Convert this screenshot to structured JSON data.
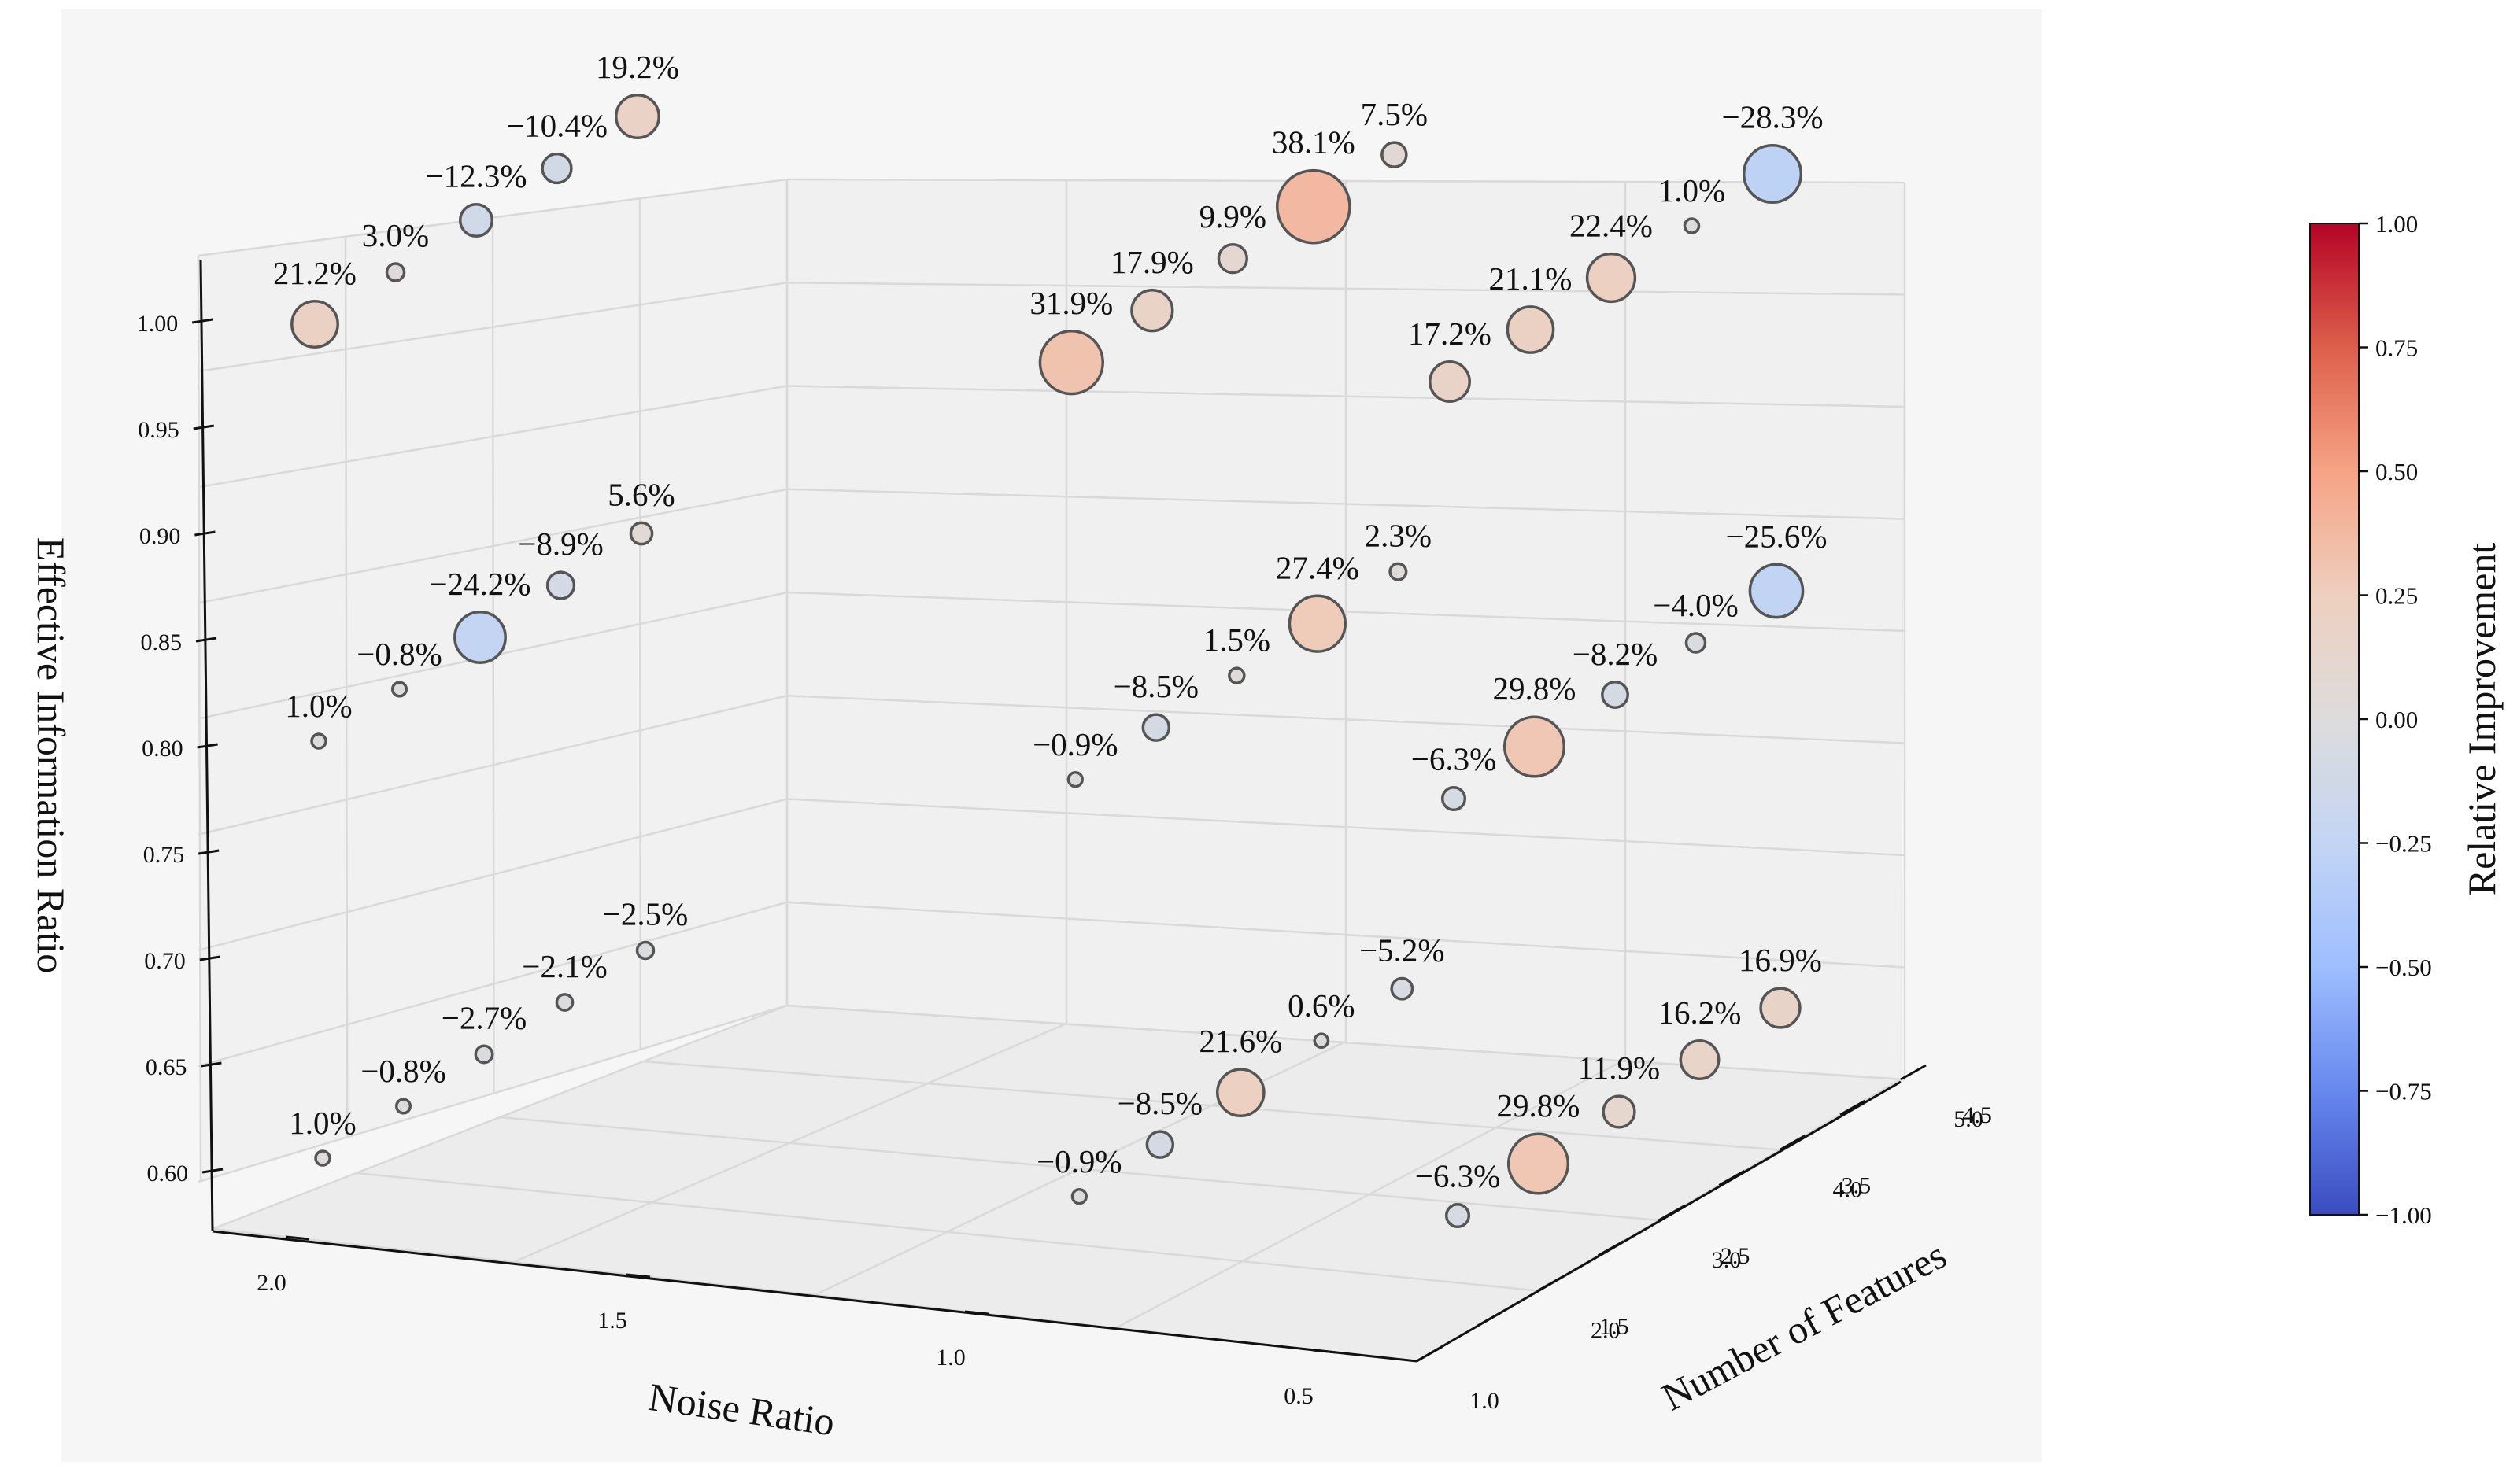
{
  "chart_data": {
    "type": "scatter3d",
    "title": "",
    "xlabel": "Noise Ratio",
    "ylabel": "Number of Features",
    "zlabel": "Effective Information Ratio",
    "colorbar_label": "Relative Improvement",
    "x_ticks": [
      "2.0",
      "1.5",
      "1.0",
      "0.5"
    ],
    "y_ticks": [
      "1.0",
      "1.5",
      "2.0",
      "2.5",
      "3.0",
      "3.5",
      "4.0",
      "4.5",
      "5.0"
    ],
    "z_ticks": [
      "0.60",
      "0.65",
      "0.70",
      "0.75",
      "0.80",
      "0.85",
      "0.90",
      "0.95",
      "1.00"
    ],
    "colorbar_ticks": [
      "1.00",
      "0.75",
      "0.50",
      "0.25",
      "0.00",
      "−0.25",
      "−0.50",
      "−0.75",
      "−1.00"
    ],
    "points": [
      {
        "noise": 2.0,
        "features": 1,
        "eir": 1.0,
        "label": "21.2%",
        "value": 0.212
      },
      {
        "noise": 2.0,
        "features": 2,
        "eir": 1.0,
        "label": "3.0%",
        "value": 0.03
      },
      {
        "noise": 2.0,
        "features": 3,
        "eir": 1.0,
        "label": "−12.3%",
        "value": -0.123
      },
      {
        "noise": 2.0,
        "features": 4,
        "eir": 1.0,
        "label": "−10.4%",
        "value": -0.104
      },
      {
        "noise": 2.0,
        "features": 5,
        "eir": 1.0,
        "label": "19.2%",
        "value": 0.192
      },
      {
        "noise": 1.0,
        "features": 1,
        "eir": 1.0,
        "label": "31.9%",
        "value": 0.319
      },
      {
        "noise": 1.0,
        "features": 2,
        "eir": 1.0,
        "label": "17.9%",
        "value": 0.179
      },
      {
        "noise": 1.0,
        "features": 3,
        "eir": 1.0,
        "label": "9.9%",
        "value": 0.099
      },
      {
        "noise": 1.0,
        "features": 4,
        "eir": 1.0,
        "label": "38.1%",
        "value": 0.381
      },
      {
        "noise": 1.0,
        "features": 5,
        "eir": 1.0,
        "label": "7.5%",
        "value": 0.075
      },
      {
        "noise": 0.5,
        "features": 1,
        "eir": 1.0,
        "label": "17.2%",
        "value": 0.172
      },
      {
        "noise": 0.5,
        "features": 2,
        "eir": 1.0,
        "label": "21.1%",
        "value": 0.211
      },
      {
        "noise": 0.5,
        "features": 3,
        "eir": 1.0,
        "label": "22.4%",
        "value": 0.224
      },
      {
        "noise": 0.5,
        "features": 4,
        "eir": 1.0,
        "label": "1.0%",
        "value": 0.01
      },
      {
        "noise": 0.5,
        "features": 5,
        "eir": 1.0,
        "label": "−28.3%",
        "value": -0.283
      },
      {
        "noise": 2.0,
        "features": 1,
        "eir": 0.8,
        "label": "1.0%",
        "value": 0.01
      },
      {
        "noise": 2.0,
        "features": 2,
        "eir": 0.8,
        "label": "−0.8%",
        "value": -0.008
      },
      {
        "noise": 2.0,
        "features": 3,
        "eir": 0.8,
        "label": "−24.2%",
        "value": -0.242
      },
      {
        "noise": 2.0,
        "features": 4,
        "eir": 0.8,
        "label": "−8.9%",
        "value": -0.089
      },
      {
        "noise": 2.0,
        "features": 5,
        "eir": 0.8,
        "label": "5.6%",
        "value": 0.056
      },
      {
        "noise": 1.0,
        "features": 1,
        "eir": 0.8,
        "label": "−0.9%",
        "value": -0.009
      },
      {
        "noise": 1.0,
        "features": 2,
        "eir": 0.8,
        "label": "−8.5%",
        "value": -0.085
      },
      {
        "noise": 1.0,
        "features": 3,
        "eir": 0.8,
        "label": "1.5%",
        "value": 0.015
      },
      {
        "noise": 1.0,
        "features": 4,
        "eir": 0.8,
        "label": "27.4%",
        "value": 0.274
      },
      {
        "noise": 1.0,
        "features": 5,
        "eir": 0.8,
        "label": "2.3%",
        "value": 0.023
      },
      {
        "noise": 0.5,
        "features": 1,
        "eir": 0.8,
        "label": "−6.3%",
        "value": -0.063
      },
      {
        "noise": 0.5,
        "features": 2,
        "eir": 0.8,
        "label": "29.8%",
        "value": 0.298
      },
      {
        "noise": 0.5,
        "features": 3,
        "eir": 0.8,
        "label": "−8.2%",
        "value": -0.082
      },
      {
        "noise": 0.5,
        "features": 4,
        "eir": 0.8,
        "label": "−4.0%",
        "value": -0.04
      },
      {
        "noise": 0.5,
        "features": 5,
        "eir": 0.8,
        "label": "−25.6%",
        "value": -0.256
      },
      {
        "noise": 2.0,
        "features": 1,
        "eir": 0.6,
        "label": "1.0%",
        "value": 0.01
      },
      {
        "noise": 2.0,
        "features": 2,
        "eir": 0.6,
        "label": "−0.8%",
        "value": -0.008
      },
      {
        "noise": 2.0,
        "features": 3,
        "eir": 0.6,
        "label": "−2.7%",
        "value": -0.027
      },
      {
        "noise": 2.0,
        "features": 4,
        "eir": 0.6,
        "label": "−2.1%",
        "value": -0.021
      },
      {
        "noise": 2.0,
        "features": 5,
        "eir": 0.6,
        "label": "−2.5%",
        "value": -0.025
      },
      {
        "noise": 1.0,
        "features": 1,
        "eir": 0.6,
        "label": "−0.9%",
        "value": -0.009
      },
      {
        "noise": 1.0,
        "features": 2,
        "eir": 0.6,
        "label": "−8.5%",
        "value": -0.085
      },
      {
        "noise": 1.0,
        "features": 3,
        "eir": 0.6,
        "label": "21.6%",
        "value": 0.216
      },
      {
        "noise": 1.0,
        "features": 4,
        "eir": 0.6,
        "label": "0.6%",
        "value": 0.006
      },
      {
        "noise": 1.0,
        "features": 5,
        "eir": 0.6,
        "label": "−5.2%",
        "value": -0.052
      },
      {
        "noise": 0.5,
        "features": 1,
        "eir": 0.6,
        "label": "−6.3%",
        "value": -0.063
      },
      {
        "noise": 0.5,
        "features": 2,
        "eir": 0.6,
        "label": "29.8%",
        "value": 0.298
      },
      {
        "noise": 0.5,
        "features": 3,
        "eir": 0.6,
        "label": "11.9%",
        "value": 0.119
      },
      {
        "noise": 0.5,
        "features": 4,
        "eir": 0.6,
        "label": "16.2%",
        "value": 0.162
      },
      {
        "noise": 0.5,
        "features": 5,
        "eir": 0.6,
        "label": "16.9%",
        "value": 0.169
      }
    ],
    "colormap": "coolwarm",
    "color_range": [
      -1,
      1
    ],
    "colors": {
      "cold": "#3b4cc0",
      "neutral": "#dddddd",
      "hot": "#b40426"
    }
  }
}
